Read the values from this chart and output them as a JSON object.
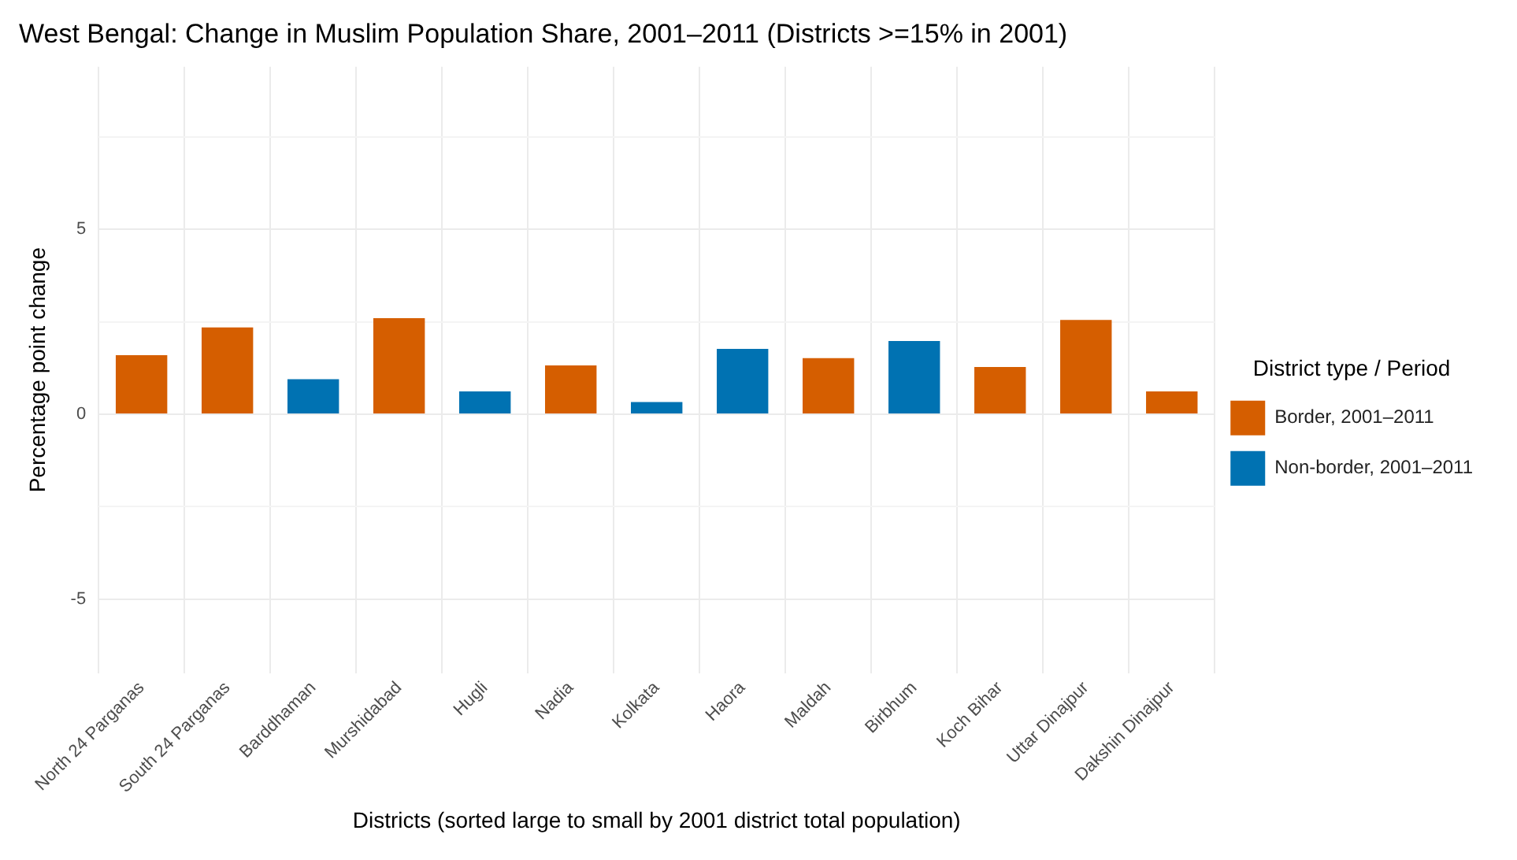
{
  "chart_data": {
    "type": "bar",
    "title": "West Bengal: Change in Muslim Population Share, 2001–2011 (Districts >=15% in 2001)",
    "xlabel": "Districts (sorted large to small by 2001 district total population)",
    "ylabel": "Percentage point change",
    "legend_title": "District type / Period",
    "categories": [
      "North 24 Parganas",
      "South 24 Parganas",
      "Barddhaman",
      "Murshidabad",
      "Hugli",
      "Nadia",
      "Kolkata",
      "Haora",
      "Maldah",
      "Birbhum",
      "Koch Bihar",
      "Uttar Dinajpur",
      "Dakshin Dinajpur"
    ],
    "series": [
      {
        "name": "Border, 2001–2011",
        "color": "#d55e00",
        "values": [
          1.6,
          2.35,
          null,
          2.6,
          null,
          1.32,
          null,
          null,
          1.52,
          null,
          1.28,
          2.55,
          0.62
        ]
      },
      {
        "name": "Non-border, 2001–2011",
        "color": "#0072b2",
        "values": [
          null,
          null,
          0.95,
          null,
          0.62,
          null,
          0.33,
          1.77,
          null,
          1.98,
          null,
          null,
          null
        ]
      }
    ],
    "ylim": [
      -7,
      9.4
    ],
    "yticks": [
      -5,
      {
        "value": -2.5,
        "label": null
      },
      0,
      {
        "value": 2.5,
        "label": null
      },
      5,
      {
        "value": 7.5,
        "label": null
      }
    ],
    "grid": true,
    "legend": "right"
  }
}
